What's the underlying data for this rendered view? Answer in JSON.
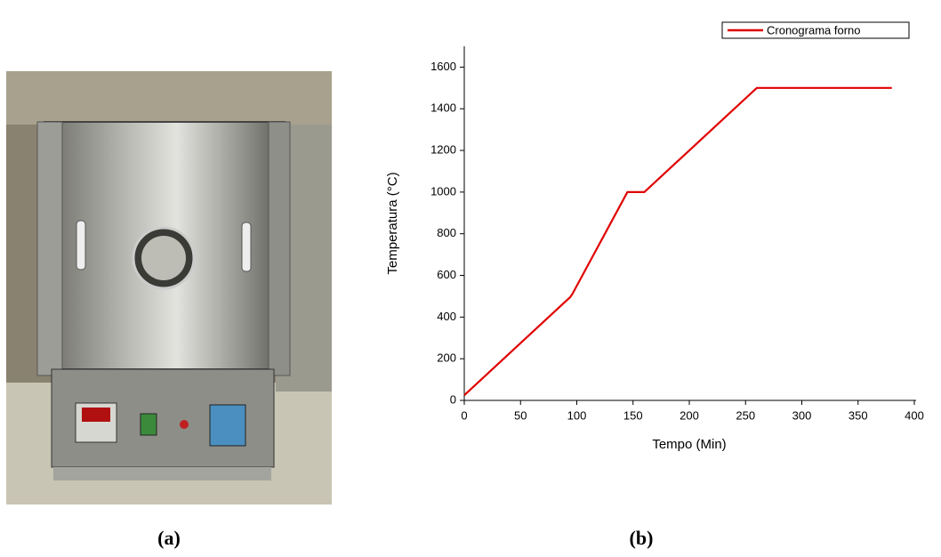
{
  "chart_data": {
    "type": "line",
    "xlabel": "Tempo (Min)",
    "ylabel": "Temperatura (°C)",
    "x": [
      0,
      94,
      96,
      145,
      160,
      260,
      380
    ],
    "series": [
      {
        "name": "Cronograma forno",
        "color": "#e00000",
        "values": [
          25,
          495,
          510,
          1000,
          1000,
          1500,
          1500
        ]
      }
    ],
    "xlim": [
      0,
      400
    ],
    "xticks": [
      0,
      50,
      100,
      150,
      200,
      250,
      300,
      350,
      400
    ],
    "ylim": [
      0,
      1700
    ],
    "yticks": [
      0,
      200,
      400,
      600,
      800,
      1000,
      1200,
      1400,
      1600
    ],
    "legend": "upper right"
  },
  "panel_labels": [
    "(a)",
    "(b)"
  ]
}
